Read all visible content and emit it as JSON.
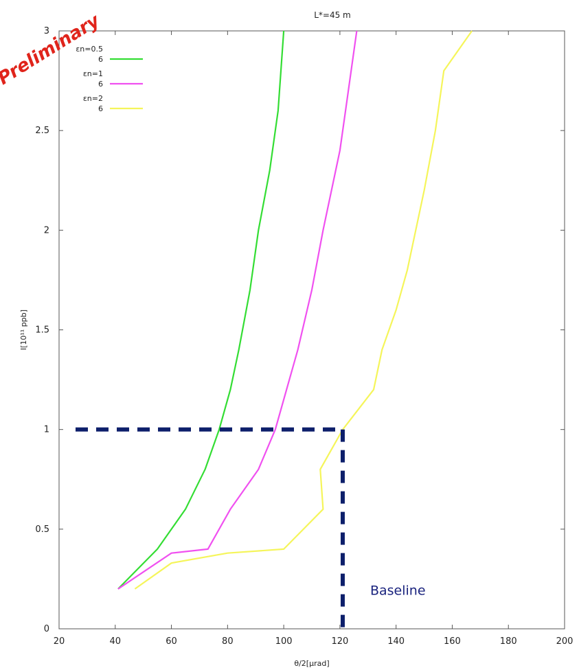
{
  "chart_data": {
    "type": "line",
    "title": "L*=45 m",
    "xlabel": "θ/2[μrad]",
    "ylabel": "I[10¹¹ ppb]",
    "xlim": [
      20,
      200
    ],
    "ylim": [
      0,
      3
    ],
    "x_ticks": [
      "20",
      "40",
      "60",
      "80",
      "100",
      "120",
      "140",
      "160",
      "180",
      "200"
    ],
    "y_ticks": [
      "0",
      "0.5",
      "1",
      "1.5",
      "2",
      "2.5",
      "3"
    ],
    "grid": false,
    "legend_position": "top-left",
    "series": [
      {
        "name": "εn=0.5 6",
        "legend_label_1": "εn=0.5",
        "legend_label_2": "6",
        "color": "#33dd33",
        "points": [
          [
            41,
            0.2
          ],
          [
            55,
            0.4
          ],
          [
            65,
            0.6
          ],
          [
            72,
            0.8
          ],
          [
            77,
            1.0
          ],
          [
            81,
            1.2
          ],
          [
            84,
            1.4
          ],
          [
            88,
            1.7
          ],
          [
            91,
            2.0
          ],
          [
            95,
            2.3
          ],
          [
            98,
            2.6
          ],
          [
            100,
            3.0
          ]
        ]
      },
      {
        "name": "εn=1 6",
        "legend_label_1": "εn=1",
        "legend_label_2": "6",
        "color": "#f050f0",
        "points": [
          [
            41,
            0.2
          ],
          [
            60,
            0.38
          ],
          [
            73,
            0.4
          ],
          [
            81,
            0.6
          ],
          [
            91,
            0.8
          ],
          [
            97,
            1.0
          ],
          [
            101,
            1.2
          ],
          [
            105,
            1.4
          ],
          [
            110,
            1.7
          ],
          [
            114,
            2.0
          ],
          [
            120,
            2.4
          ],
          [
            122,
            2.6
          ],
          [
            126,
            3.0
          ]
        ]
      },
      {
        "name": "εn=2 6",
        "legend_label_1": "εn=2",
        "legend_label_2": "6",
        "color": "#f5f55a",
        "points": [
          [
            47,
            0.2
          ],
          [
            60,
            0.33
          ],
          [
            80,
            0.38
          ],
          [
            100,
            0.4
          ],
          [
            114,
            0.6
          ],
          [
            113,
            0.8
          ],
          [
            121,
            1.0
          ],
          [
            132,
            1.2
          ],
          [
            135,
            1.4
          ],
          [
            140,
            1.6
          ],
          [
            144,
            1.8
          ],
          [
            150,
            2.2
          ],
          [
            154,
            2.5
          ],
          [
            157,
            2.8
          ],
          [
            167,
            3.0
          ]
        ]
      }
    ],
    "baseline": {
      "x": 121,
      "y": 1.0,
      "label": "Baseline",
      "color": "#0d1f6b"
    },
    "stamp_text": "Preliminary"
  }
}
